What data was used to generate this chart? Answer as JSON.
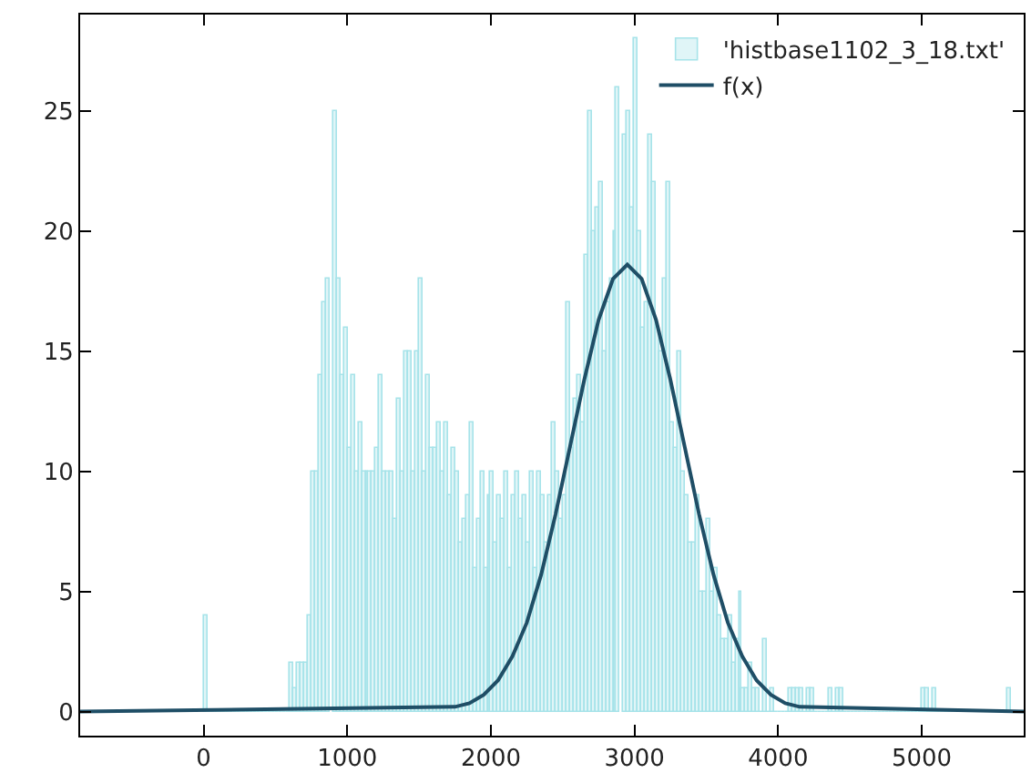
{
  "chart_data": {
    "type": "histogram",
    "series": [
      {
        "name": "'histbase1102_3_18.txt'",
        "type": "histogram",
        "color": "#a6e3e9",
        "bins": [
          0,
          25,
          50,
          75,
          100,
          125,
          150,
          175,
          200,
          225,
          250,
          275,
          300,
          325,
          350,
          375,
          400,
          425,
          450,
          475,
          500,
          525,
          550,
          575,
          600,
          625,
          650,
          675,
          700,
          725,
          750,
          775,
          800,
          825,
          850,
          875,
          900,
          925,
          950,
          975,
          1000,
          1025,
          1050,
          1075,
          1100,
          1125,
          1150,
          1175,
          1200,
          1225,
          1250,
          1275,
          1300,
          1325,
          1350,
          1375,
          1400,
          1425,
          1450,
          1475,
          1500,
          1525,
          1550,
          1575,
          1600,
          1625,
          1650,
          1675,
          1700,
          1725,
          1750,
          1775,
          1800,
          1825,
          1850,
          1875,
          1900,
          1925,
          1950,
          1975,
          2000,
          2025,
          2050,
          2075,
          2100,
          2125,
          2150,
          2175,
          2200,
          2225,
          2250,
          2275,
          2300,
          2325,
          2350,
          2375,
          2400,
          2425,
          2450,
          2475,
          2500,
          2525,
          2550,
          2575,
          2600,
          2625,
          2650,
          2675,
          2700,
          2725,
          2750,
          2775,
          2800,
          2825,
          2850,
          2875,
          2900,
          2925,
          2950,
          2975,
          3000,
          3025,
          3050,
          3075,
          3100,
          3125,
          3150,
          3175,
          3200,
          3225,
          3250,
          3275,
          3300,
          3325,
          3350,
          3375,
          3400,
          3425,
          3450,
          3475,
          3500,
          3525,
          3550,
          3575,
          3600,
          3625,
          3650,
          3675,
          3700,
          3725,
          3750,
          3775,
          3800,
          3825,
          3850,
          3875,
          3900,
          3925,
          3950,
          3975,
          4000,
          4025,
          4050,
          4075,
          4100,
          4125,
          4150,
          4175,
          4200,
          4225,
          4250,
          4275,
          4300,
          4325,
          4350,
          4375,
          4400,
          4425,
          4450,
          4475,
          4500,
          4525,
          4550,
          4575,
          4600,
          4625,
          4650,
          4675,
          4700,
          4725,
          4750,
          4775,
          4800,
          4825,
          4850,
          4875,
          4900,
          4925,
          4950,
          4975,
          5000,
          5025,
          5050,
          5075,
          5100,
          5125,
          5150,
          5175,
          5200,
          5225,
          5250,
          5275,
          5300,
          5325,
          5350,
          5375,
          5400,
          5425,
          5450,
          5475,
          5500,
          5525,
          5550,
          5575,
          5600,
          5625
        ],
        "values": [
          4,
          0,
          0,
          0,
          0,
          0,
          0,
          0,
          0,
          0,
          0,
          0,
          0,
          0,
          0,
          0,
          0,
          0,
          0,
          0,
          0,
          0,
          0,
          0,
          2,
          1,
          2,
          2,
          2,
          4,
          10,
          10,
          14,
          17,
          18,
          null,
          25,
          18,
          14,
          16,
          11,
          14,
          10,
          12,
          10,
          10,
          10,
          10,
          11,
          14,
          10,
          10,
          10,
          8,
          13,
          10,
          15,
          15,
          10,
          15,
          18,
          10,
          14,
          11,
          11,
          12,
          10,
          12,
          9,
          11,
          10,
          7,
          8,
          9,
          12,
          6,
          8,
          10,
          6,
          9,
          10,
          7,
          9,
          8,
          10,
          6,
          9,
          10,
          8,
          9,
          7,
          10,
          6,
          10,
          9,
          7,
          9,
          12,
          10,
          8,
          9,
          17,
          11,
          13,
          14,
          12,
          19,
          25,
          20,
          21,
          22,
          15,
          17,
          18,
          20,
          26,
          null,
          24,
          25,
          21,
          28,
          20,
          16,
          17,
          24,
          22,
          16,
          15,
          18,
          22,
          12,
          11,
          15,
          10,
          9,
          7,
          7,
          9,
          5,
          5,
          8,
          5,
          6,
          4,
          3,
          3,
          4,
          2,
          3,
          5,
          1,
          1,
          2,
          1,
          1,
          0,
          3,
          0,
          1,
          0,
          0,
          0,
          0,
          1,
          1,
          1,
          1,
          0,
          1,
          1,
          0,
          0,
          0,
          0,
          1,
          0,
          1,
          1,
          0,
          0,
          0,
          0,
          0,
          0,
          0,
          0,
          0,
          0,
          0,
          0,
          0,
          0,
          0,
          0,
          0,
          0,
          0,
          0,
          0,
          0,
          1,
          1,
          0,
          1,
          0,
          0,
          0,
          0,
          0,
          0,
          0,
          0,
          0,
          0,
          0,
          0,
          0,
          0,
          0,
          0,
          0,
          0,
          0,
          0,
          1
        ]
      },
      {
        "name": "f(x)",
        "type": "line",
        "color": "#1f4e66",
        "x": [
          -860,
          1750,
          1850,
          1950,
          2050,
          2150,
          2250,
          2350,
          2450,
          2550,
          2650,
          2750,
          2850,
          2950,
          3050,
          3150,
          3250,
          3350,
          3450,
          3550,
          3650,
          3750,
          3850,
          3950,
          4050,
          4150,
          5710
        ],
        "values": [
          0,
          0.2,
          0.35,
          0.7,
          1.3,
          2.3,
          3.7,
          5.7,
          8.2,
          11.0,
          13.8,
          16.3,
          18.0,
          18.6,
          18.0,
          16.3,
          13.8,
          11.0,
          8.2,
          5.7,
          3.7,
          2.3,
          1.3,
          0.7,
          0.35,
          0.2,
          0
        ]
      }
    ],
    "xlim": [
      -860,
      5710
    ],
    "ylim": [
      -1,
      29
    ],
    "xticks": [
      0,
      1000,
      2000,
      3000,
      4000,
      5000
    ],
    "yticks": [
      0,
      5,
      10,
      15,
      20,
      25
    ],
    "legend": "top right",
    "marker": "none",
    "line_style": "solid"
  }
}
